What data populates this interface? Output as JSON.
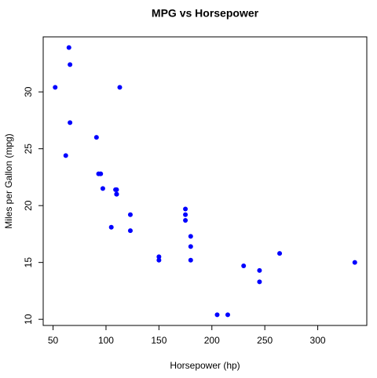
{
  "chart_data": {
    "type": "scatter",
    "title": "MPG vs Horsepower",
    "x_label": "Horsepower (hp)",
    "y_label": "Miles per Gallon (mpg)",
    "x": [
      110,
      110,
      93,
      110,
      175,
      105,
      245,
      62,
      95,
      123,
      123,
      180,
      180,
      180,
      205,
      215,
      230,
      66,
      52,
      65,
      97,
      150,
      150,
      245,
      175,
      66,
      91,
      113,
      264,
      175,
      335,
      109
    ],
    "values": [
      21.0,
      21.0,
      22.8,
      21.4,
      18.7,
      18.1,
      14.3,
      24.4,
      22.8,
      19.2,
      17.8,
      16.4,
      17.3,
      15.2,
      10.4,
      10.4,
      14.7,
      32.4,
      30.4,
      33.9,
      21.5,
      15.5,
      15.2,
      13.3,
      19.2,
      27.3,
      26.0,
      30.4,
      15.8,
      19.7,
      15.0,
      21.4
    ],
    "color": "#0000ff",
    "xlim": [
      40.68,
      346.32
    ],
    "ylim": [
      9.46,
      34.84
    ],
    "xticks": [
      50,
      100,
      150,
      200,
      250,
      300
    ],
    "yticks": [
      10,
      15,
      20,
      25,
      30
    ],
    "grid": false
  }
}
